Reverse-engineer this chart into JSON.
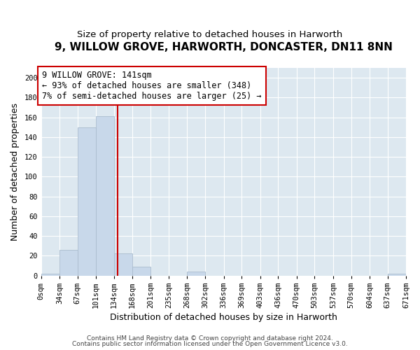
{
  "title_line1": "9, WILLOW GROVE, HARWORTH, DONCASTER, DN11 8NN",
  "title_line2": "Size of property relative to detached houses in Harworth",
  "xlabel": "Distribution of detached houses by size in Harworth",
  "ylabel": "Number of detached properties",
  "bin_edges": [
    0,
    34,
    67,
    101,
    134,
    168,
    201,
    235,
    268,
    302,
    336,
    369,
    403,
    436,
    470,
    503,
    537,
    570,
    604,
    637,
    671
  ],
  "bar_heights": [
    2,
    26,
    150,
    161,
    22,
    9,
    0,
    0,
    4,
    0,
    0,
    0,
    0,
    0,
    0,
    0,
    0,
    0,
    0,
    2
  ],
  "bar_color": "#c8d8ea",
  "bar_edgecolor": "#aabcce",
  "vline_color": "#cc0000",
  "vline_x": 141,
  "annotation_line1": "9 WILLOW GROVE: 141sqm",
  "annotation_line2": "← 93% of detached houses are smaller (348)",
  "annotation_line3": "7% of semi-detached houses are larger (25) →",
  "annotation_box_edgecolor": "#cc0000",
  "annotation_box_facecolor": "#ffffff",
  "ylim": [
    0,
    210
  ],
  "yticks": [
    0,
    20,
    40,
    60,
    80,
    100,
    120,
    140,
    160,
    180,
    200
  ],
  "footer_line1": "Contains HM Land Registry data © Crown copyright and database right 2024.",
  "footer_line2": "Contains public sector information licensed under the Open Government Licence v3.0.",
  "bg_color": "#ffffff",
  "plot_bg_color": "#dde8f0",
  "grid_color": "#ffffff",
  "title_fontsize": 11,
  "subtitle_fontsize": 9.5,
  "axis_label_fontsize": 9,
  "tick_fontsize": 7.5,
  "footer_fontsize": 6.5,
  "annotation_fontsize": 8.5
}
